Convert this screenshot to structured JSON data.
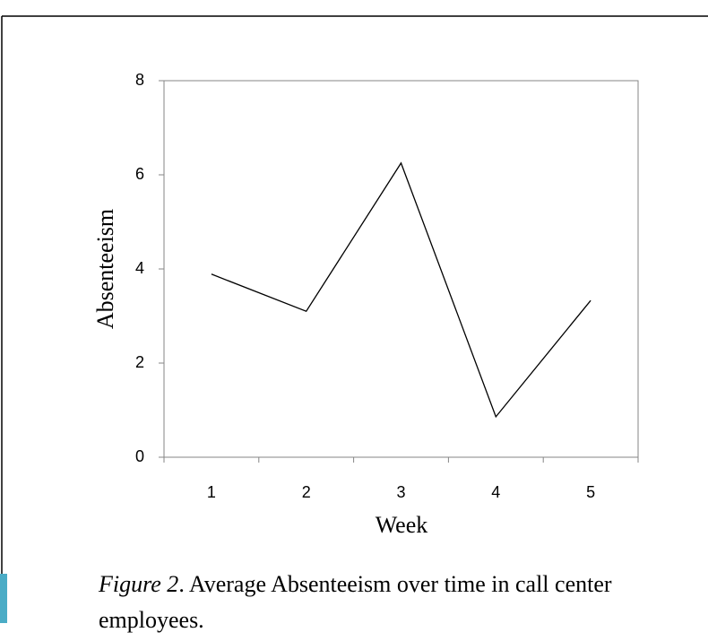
{
  "chart_data": {
    "type": "line",
    "x_label": "Week",
    "y_label": "Absenteeism",
    "categories": [
      "1",
      "2",
      "3",
      "4",
      "5"
    ],
    "values": [
      3.89,
      3.1,
      6.25,
      0.86,
      3.33
    ],
    "color": "#000000",
    "ylim": [
      0,
      8
    ],
    "yticks": [
      0,
      2,
      4,
      6,
      8
    ],
    "grid": false,
    "caption_label": "Figure 2",
    "caption_text": ". Average Absenteeism over time in call center employees."
  }
}
